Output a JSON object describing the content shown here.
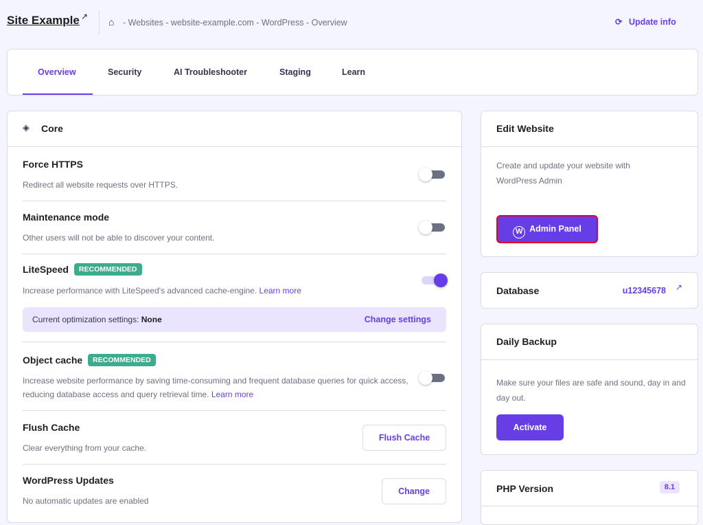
{
  "header": {
    "title": "Site Example",
    "breadcrumb": "- Websites - website-example.com - WordPress - Overview",
    "update_info": "Update info"
  },
  "tabs": [
    {
      "label": "Overview",
      "active": true
    },
    {
      "label": "Security"
    },
    {
      "label": "AI Troubleshooter"
    },
    {
      "label": "Staging"
    },
    {
      "label": "Learn"
    }
  ],
  "core": {
    "title": "Core",
    "force_https": {
      "title": "Force HTTPS",
      "desc": "Redirect all website requests over HTTPS.",
      "enabled": false
    },
    "maintenance": {
      "title": "Maintenance mode",
      "desc": "Other users will not be able to discover your content.",
      "enabled": false
    },
    "litespeed": {
      "title": "LiteSpeed",
      "badge": "RECOMMENDED",
      "desc": "Increase performance with LiteSpeed's advanced cache-engine.",
      "learn": "Learn more",
      "enabled": true,
      "opt_label": "Current optimization settings:",
      "opt_value": "None",
      "change_settings": "Change settings"
    },
    "object_cache": {
      "title": "Object cache",
      "badge": "RECOMMENDED",
      "desc": "Increase website performance by saving time-consuming and frequent database queries for quick access, reducing database access and query retrieval time.",
      "learn": "Learn more",
      "enabled": false
    },
    "flush": {
      "title": "Flush Cache",
      "desc": "Clear everything from your cache.",
      "button": "Flush Cache"
    },
    "wp_updates": {
      "title": "WordPress Updates",
      "desc": "No automatic updates are enabled",
      "button": "Change"
    }
  },
  "edit": {
    "title": "Edit Website",
    "desc": "Create and update your website with WordPress Admin",
    "button": "Admin Panel"
  },
  "database": {
    "title": "Database",
    "value": "u12345678"
  },
  "backup": {
    "title": "Daily Backup",
    "desc": "Make sure your files are safe and sound, day in and day out.",
    "button": "Activate"
  },
  "php": {
    "title": "PHP Version",
    "value": "8.1"
  },
  "colors": {
    "accent": "#673de6",
    "highlight": "#e4002b",
    "badge": "#3dab8c"
  }
}
